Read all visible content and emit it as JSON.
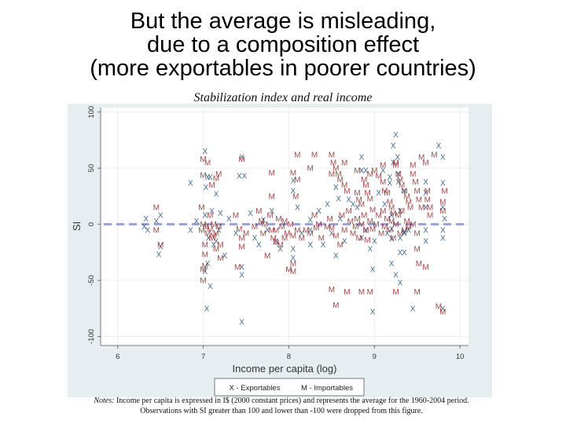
{
  "slide": {
    "title_lines": [
      "But the average is misleading,",
      "due to a composition effect",
      "(more exportables in poorer countries)"
    ]
  },
  "chart_data": {
    "type": "scatter",
    "title": "Stabilization index and real income",
    "xlabel": "Income per capita (log)",
    "ylabel": "SI",
    "xlim": [
      5.8,
      10.1
    ],
    "ylim": [
      -108,
      104
    ],
    "xticks": [
      6,
      7,
      8,
      9,
      10
    ],
    "yticks": [
      -100,
      -50,
      0,
      50,
      100
    ],
    "grid": true,
    "reference_line": {
      "y": 0,
      "style": "dashed",
      "color": "#9aa2d6"
    },
    "colors": {
      "exportables": "#1f4e79",
      "importables": "#8b2a2a"
    },
    "legend": {
      "placement": "bottom",
      "entries": [
        {
          "marker": "X",
          "label": "X - Exportables"
        },
        {
          "marker": "M",
          "label": "M - Importables"
        }
      ]
    },
    "series": [
      {
        "name": "Exportables",
        "marker": "X",
        "points": [
          [
            6.33,
            5
          ],
          [
            6.35,
            -5
          ],
          [
            6.5,
            8
          ],
          [
            6.5,
            -20
          ],
          [
            6.48,
            -27
          ],
          [
            6.31,
            -2
          ],
          [
            6.45,
            3
          ],
          [
            6.85,
            37
          ],
          [
            6.85,
            -5
          ],
          [
            6.92,
            3
          ],
          [
            7.02,
            65
          ],
          [
            7.05,
            42
          ],
          [
            7.08,
            42
          ],
          [
            7.03,
            33
          ],
          [
            7.15,
            27
          ],
          [
            7.1,
            12
          ],
          [
            7.02,
            8
          ],
          [
            7.06,
            -12
          ],
          [
            7.12,
            -18
          ],
          [
            7.05,
            -35
          ],
          [
            7.02,
            -42
          ],
          [
            7.08,
            -55
          ],
          [
            7.04,
            -75
          ],
          [
            7.2,
            10
          ],
          [
            7.18,
            -5
          ],
          [
            7.15,
            -15
          ],
          [
            7.25,
            -28
          ],
          [
            7.3,
            5
          ],
          [
            7.38,
            -8
          ],
          [
            7.45,
            60
          ],
          [
            7.42,
            43
          ],
          [
            7.48,
            43
          ],
          [
            7.45,
            -38
          ],
          [
            7.45,
            -45
          ],
          [
            7.45,
            -87
          ],
          [
            7.55,
            10
          ],
          [
            7.6,
            -12
          ],
          [
            7.65,
            -18
          ],
          [
            7.7,
            4
          ],
          [
            7.75,
            -5
          ],
          [
            7.8,
            12
          ],
          [
            7.85,
            -15
          ],
          [
            7.9,
            -22
          ],
          [
            8.05,
            39
          ],
          [
            8.05,
            30
          ],
          [
            8.05,
            -22
          ],
          [
            8.05,
            -30
          ],
          [
            8.1,
            15
          ],
          [
            8.15,
            -8
          ],
          [
            8.25,
            4
          ],
          [
            8.25,
            -5
          ],
          [
            8.25,
            -18
          ],
          [
            8.35,
            12
          ],
          [
            8.4,
            -18
          ],
          [
            8.45,
            18
          ],
          [
            8.5,
            -8
          ],
          [
            8.55,
            -28
          ],
          [
            8.55,
            33
          ],
          [
            8.58,
            23
          ],
          [
            8.6,
            5
          ],
          [
            8.65,
            -15
          ],
          [
            8.7,
            22
          ],
          [
            8.75,
            18
          ],
          [
            8.8,
            15
          ],
          [
            8.85,
            -12
          ],
          [
            8.9,
            -5
          ],
          [
            8.95,
            -22
          ],
          [
            8.85,
            60
          ],
          [
            8.85,
            48
          ],
          [
            8.9,
            48
          ],
          [
            8.98,
            -40
          ],
          [
            8.98,
            -78
          ],
          [
            9.0,
            -15
          ],
          [
            9.05,
            28
          ],
          [
            9.1,
            48
          ],
          [
            9.12,
            18
          ],
          [
            9.15,
            -8
          ],
          [
            9.2,
            -35
          ],
          [
            9.2,
            -4
          ],
          [
            9.18,
            37
          ],
          [
            9.18,
            42
          ],
          [
            9.2,
            8
          ],
          [
            9.2,
            -13
          ],
          [
            9.22,
            70
          ],
          [
            9.25,
            80
          ],
          [
            9.22,
            55
          ],
          [
            9.27,
            60
          ],
          [
            9.28,
            45
          ],
          [
            9.3,
            12
          ],
          [
            9.3,
            -25
          ],
          [
            9.25,
            -45
          ],
          [
            9.3,
            -52
          ],
          [
            9.3,
            -12
          ],
          [
            9.35,
            30
          ],
          [
            9.35,
            -8
          ],
          [
            9.28,
            38
          ],
          [
            9.35,
            -25
          ],
          [
            9.35,
            -7
          ],
          [
            9.4,
            -5
          ],
          [
            9.45,
            -75
          ],
          [
            9.6,
            38
          ],
          [
            9.6,
            28
          ],
          [
            9.6,
            15
          ],
          [
            9.6,
            -5
          ],
          [
            9.8,
            37
          ],
          [
            9.8,
            15
          ],
          [
            9.8,
            -5
          ],
          [
            9.8,
            -12
          ],
          [
            9.8,
            -75
          ],
          [
            9.8,
            60
          ],
          [
            9.75,
            70
          ],
          [
            9.82,
            5
          ],
          [
            9.6,
            -15
          ]
        ]
      },
      {
        "name": "Importables",
        "marker": "M",
        "points": [
          [
            6.45,
            15
          ],
          [
            6.5,
            -18
          ],
          [
            6.45,
            -5
          ],
          [
            6.98,
            15
          ],
          [
            7.0,
            0
          ],
          [
            6.98,
            -5
          ],
          [
            7.03,
            -2
          ],
          [
            7.05,
            -8
          ],
          [
            7.02,
            -18
          ],
          [
            7.08,
            8
          ],
          [
            7.08,
            -4
          ],
          [
            7.1,
            -12
          ],
          [
            7.15,
            -8
          ],
          [
            7.18,
            -2
          ],
          [
            7.2,
            -18
          ],
          [
            7.12,
            0
          ],
          [
            7.02,
            -27
          ],
          [
            7.02,
            -37
          ],
          [
            7.15,
            -22
          ],
          [
            7.2,
            -30
          ],
          [
            7.12,
            -10
          ],
          [
            7.38,
            8
          ],
          [
            7.42,
            -4
          ],
          [
            7.45,
            -12
          ],
          [
            7.45,
            -20
          ],
          [
            7.5,
            -8
          ],
          [
            7.6,
            -2
          ],
          [
            7.65,
            12
          ],
          [
            7.68,
            3
          ],
          [
            7.7,
            -8
          ],
          [
            7.72,
            0
          ],
          [
            7.78,
            8
          ],
          [
            7.82,
            -12
          ],
          [
            7.75,
            -28
          ],
          [
            7.8,
            -5
          ],
          [
            7.88,
            5
          ],
          [
            7.9,
            -18
          ],
          [
            7.95,
            -12
          ],
          [
            7.85,
            -5
          ],
          [
            7.92,
            -2
          ],
          [
            7.85,
            -16
          ],
          [
            7.95,
            3
          ],
          [
            7.98,
            -8
          ],
          [
            8.02,
            0
          ],
          [
            8.05,
            -10
          ],
          [
            8.05,
            -35
          ],
          [
            8.05,
            -42
          ],
          [
            8.1,
            -5
          ],
          [
            8.15,
            -12
          ],
          [
            8.2,
            -5
          ],
          [
            8.25,
            -8
          ],
          [
            8.3,
            8
          ],
          [
            8.32,
            -3
          ],
          [
            8.35,
            0
          ],
          [
            8.38,
            -12
          ],
          [
            8.45,
            -2
          ],
          [
            8.48,
            5
          ],
          [
            8.5,
            -3
          ],
          [
            8.55,
            -10
          ],
          [
            8.6,
            -18
          ],
          [
            8.65,
            -5
          ],
          [
            8.62,
            8
          ],
          [
            8.7,
            12
          ],
          [
            8.72,
            3
          ],
          [
            8.75,
            -8
          ],
          [
            8.78,
            -2
          ],
          [
            8.8,
            5
          ],
          [
            8.82,
            -12
          ],
          [
            8.85,
            0
          ],
          [
            8.88,
            8
          ],
          [
            8.9,
            -5
          ],
          [
            8.92,
            -14
          ],
          [
            8.95,
            3
          ],
          [
            8.98,
            -4
          ],
          [
            9.02,
            0
          ],
          [
            9.05,
            8
          ],
          [
            9.08,
            -8
          ],
          [
            9.1,
            12
          ],
          [
            9.12,
            -2
          ],
          [
            9.15,
            5
          ],
          [
            9.18,
            -5
          ],
          [
            9.2,
            3
          ],
          [
            9.22,
            -12
          ],
          [
            9.25,
            0
          ],
          [
            9.28,
            8
          ],
          [
            9.3,
            -8
          ],
          [
            9.32,
            12
          ],
          [
            9.35,
            -5
          ],
          [
            9.38,
            3
          ],
          [
            9.4,
            -2
          ],
          [
            9.45,
            0
          ],
          [
            9.5,
            -8
          ],
          [
            9.5,
            -22
          ],
          [
            9.52,
            -35
          ],
          [
            7.0,
            58
          ],
          [
            7.05,
            55
          ],
          [
            7.1,
            35
          ],
          [
            7.0,
            44
          ],
          [
            7.15,
            41
          ],
          [
            7.18,
            45
          ],
          [
            7.45,
            58
          ],
          [
            7.8,
            46
          ],
          [
            8.05,
            46
          ],
          [
            8.25,
            50
          ],
          [
            8.5,
            62
          ],
          [
            8.52,
            55
          ],
          [
            8.55,
            50
          ],
          [
            8.58,
            45
          ],
          [
            8.6,
            40
          ],
          [
            8.65,
            35
          ],
          [
            8.68,
            30
          ],
          [
            8.8,
            28
          ],
          [
            8.82,
            22
          ],
          [
            8.85,
            18
          ],
          [
            8.88,
            40
          ],
          [
            8.9,
            35
          ],
          [
            8.92,
            28
          ],
          [
            8.95,
            23
          ],
          [
            8.98,
            13
          ],
          [
            9.0,
            48
          ],
          [
            9.05,
            43
          ],
          [
            9.1,
            38
          ],
          [
            9.12,
            30
          ],
          [
            9.15,
            28
          ],
          [
            9.18,
            20
          ],
          [
            9.2,
            15
          ],
          [
            9.22,
            10
          ],
          [
            9.25,
            53
          ],
          [
            9.28,
            45
          ],
          [
            9.3,
            40
          ],
          [
            9.32,
            35
          ],
          [
            9.35,
            30
          ],
          [
            9.38,
            25
          ],
          [
            9.4,
            20
          ],
          [
            9.42,
            15
          ],
          [
            9.45,
            53
          ],
          [
            9.45,
            45
          ],
          [
            9.48,
            38
          ],
          [
            9.5,
            30
          ],
          [
            9.52,
            22
          ],
          [
            9.55,
            15
          ],
          [
            9.62,
            30
          ],
          [
            9.62,
            22
          ],
          [
            9.65,
            15
          ],
          [
            9.65,
            8
          ],
          [
            9.8,
            20
          ],
          [
            9.8,
            12
          ],
          [
            9.82,
            30
          ],
          [
            8.55,
            -72
          ],
          [
            8.68,
            -60
          ],
          [
            8.85,
            -60
          ],
          [
            8.95,
            -60
          ],
          [
            9.25,
            -60
          ],
          [
            9.5,
            -60
          ],
          [
            9.6,
            -38
          ],
          [
            9.8,
            -78
          ],
          [
            9.75,
            -73
          ],
          [
            8.5,
            -58
          ],
          [
            8.0,
            -40
          ],
          [
            7.0,
            -40
          ],
          [
            7.4,
            -38
          ],
          [
            7.0,
            -50
          ],
          [
            8.1,
            62
          ],
          [
            8.3,
            62
          ],
          [
            8.5,
            45
          ],
          [
            8.65,
            55
          ],
          [
            8.8,
            48
          ],
          [
            8.95,
            45
          ],
          [
            9.1,
            53
          ],
          [
            9.25,
            55
          ],
          [
            9.6,
            55
          ],
          [
            9.7,
            62
          ],
          [
            9.55,
            60
          ],
          [
            7.8,
            25
          ],
          [
            8.08,
            25
          ],
          [
            8.1,
            40
          ]
        ]
      }
    ],
    "notes": {
      "label": "Notes:",
      "text": " Income per capita is expressed in I$ (2000 constant prices) and represents the average for the 1960-2004 period.",
      "line2": "Observations with SI greater than 100 and lower than -100 were dropped from this figure."
    }
  }
}
